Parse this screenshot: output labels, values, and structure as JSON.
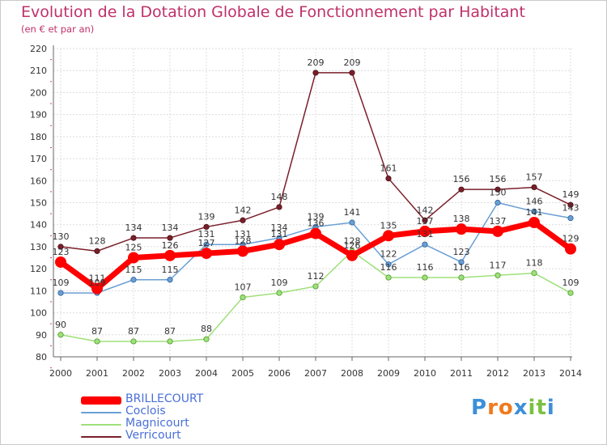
{
  "chart_data": {
    "type": "line",
    "title": "Evolution de la Dotation Globale de Fonctionnement par Habitant",
    "subtitle": "(en € et par an)",
    "xlabel": "",
    "ylabel": "",
    "categories": [
      "2000",
      "2001",
      "2002",
      "2003",
      "2004",
      "2005",
      "2006",
      "2007",
      "2008",
      "2009",
      "2010",
      "2011",
      "2012",
      "2013",
      "2014"
    ],
    "ylim": [
      80,
      220
    ],
    "yticks": [
      80,
      90,
      100,
      110,
      120,
      130,
      140,
      150,
      160,
      170,
      180,
      190,
      200,
      210,
      220
    ],
    "grid": true,
    "legend_position": "bottom-left",
    "series": [
      {
        "name": "BRILLECOURT",
        "color": "#ff0000",
        "values": [
          123,
          111,
          125,
          126,
          127,
          128,
          131,
          136,
          126,
          135,
          137,
          138,
          137,
          141,
          129
        ]
      },
      {
        "name": "Coclois",
        "color": "#6a9fd4",
        "values": [
          109,
          109,
          115,
          115,
          131,
          131,
          134,
          139,
          141,
          122,
          131,
          123,
          150,
          146,
          143
        ]
      },
      {
        "name": "Magnicourt",
        "color": "#9fe07a",
        "values": [
          90,
          87,
          87,
          87,
          88,
          107,
          109,
          112,
          128,
          116,
          116,
          116,
          117,
          118,
          109
        ]
      },
      {
        "name": "Verricourt",
        "color": "#7a1f2a",
        "values": [
          130,
          128,
          134,
          134,
          139,
          142,
          148,
          209,
          209,
          161,
          142,
          156,
          156,
          157,
          149
        ]
      }
    ]
  },
  "logo": {
    "text": "Proxiti",
    "letters": [
      "P",
      "r",
      "o",
      "x",
      "i",
      "t",
      "i"
    ],
    "colors": [
      "#3c8fd8",
      "#f07a1e",
      "#f07a1e",
      "#3c8fd8",
      "#7ac142",
      "#7ac142",
      "#3c8fd8"
    ]
  }
}
